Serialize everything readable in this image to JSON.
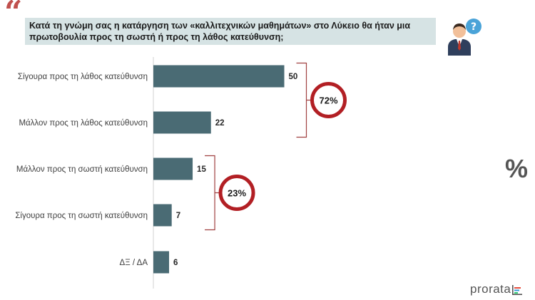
{
  "question": "Κατά τη γνώμη σας η κατάργηση των «καλλιτεχνικών μαθημάτων» στο Λύκειο θα ήταν μια πρωτοβουλία προς τη σωστή ή προς τη λάθος κατεύθυνση;",
  "quote_mark": "“",
  "percent_sign": "%",
  "brand": "prorata",
  "colors": {
    "bar": "#4a6b74",
    "accent": "#b21f24",
    "bracket": "#a04040",
    "question_bg": "#d6e3e4"
  },
  "icons": [
    "person-with-question-icon",
    "prorata-logo-icon"
  ],
  "chart_data": {
    "type": "bar",
    "orientation": "horizontal",
    "categories": [
      "Σίγουρα προς τη λάθος κατεύθυνση",
      "Μάλλον προς τη λάθος κατεύθυνση",
      "Μάλλον προς τη σωστή κατεύθυνση",
      "Σίγουρα προς τη σωστή κατεύθυνση",
      "ΔΞ / ΔΑ"
    ],
    "values": [
      50,
      22,
      15,
      7,
      6
    ],
    "value_labels": [
      "50",
      "22",
      "15",
      "7",
      "6"
    ],
    "groups": [
      {
        "label": "72%",
        "categories": [
          0,
          1
        ]
      },
      {
        "label": "23%",
        "categories": [
          2,
          3
        ]
      }
    ],
    "xlim": [
      0,
      52
    ],
    "grid": false,
    "legend": "none"
  }
}
